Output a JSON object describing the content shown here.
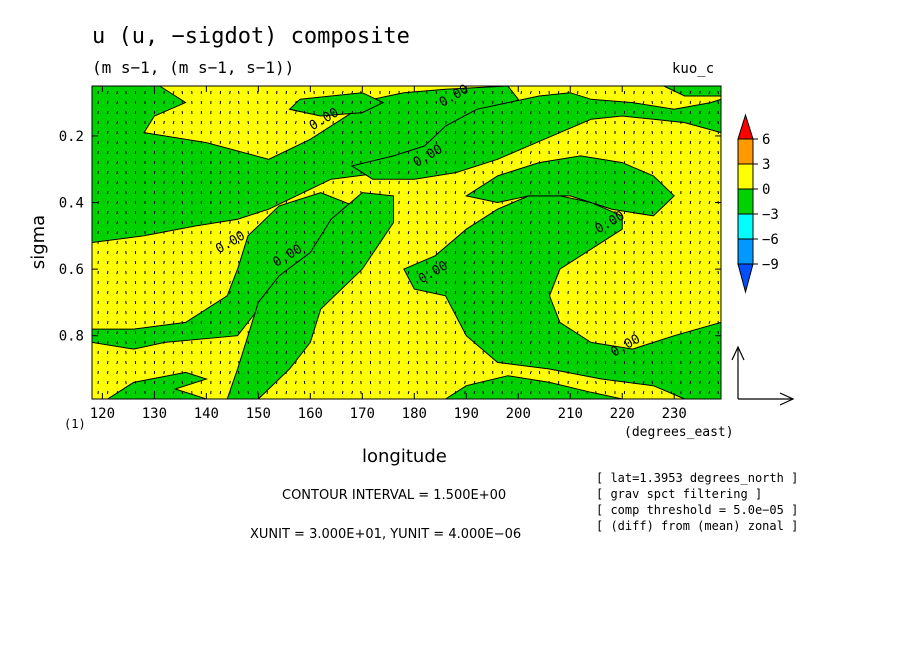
{
  "figure": {
    "title": "u (u, −sigdot) composite",
    "subtitle": "(m s−1, (m s−1, s−1))",
    "dataset": "kuo_c",
    "footnote": "(1)",
    "contour_interval": "CONTOUR INTERVAL = 1.500E+00",
    "units": "XUNIT = 3.000E+01, YUNIT = 4.000E−06",
    "notes": [
      "[ lat=1.3953 degrees_north ]",
      "[ grav spct filtering ]",
      "[ comp threshold = 5.0e−05 ]",
      "[ (diff) from (mean) zonal ]"
    ],
    "colors": {
      "positive": "#ffff00",
      "negative": "#00d200",
      "vector": "#000000"
    }
  },
  "chart_data": {
    "type": "heatmap",
    "title": "u (u, −sigdot) composite",
    "subtitle": "(m s−1, (m s−1, s−1))",
    "xlabel": "longitude",
    "xunits": "(degrees_east)",
    "ylabel": "sigma",
    "xlim": [
      118,
      239
    ],
    "ylim": [
      0.05,
      0.99
    ],
    "y_inverted": true,
    "x_ticks": [
      120,
      130,
      140,
      150,
      160,
      170,
      180,
      190,
      200,
      210,
      220,
      230
    ],
    "y_ticks": [
      0.2,
      0.4,
      0.6,
      0.8
    ],
    "y_tick_labels": [
      "0.2",
      "0.4",
      "0.6",
      "0.8"
    ],
    "contour_label": "0.00",
    "contour_label_positions": [
      [
        163,
        0.16
      ],
      [
        188,
        0.09
      ],
      [
        183,
        0.27
      ],
      [
        145,
        0.53
      ],
      [
        156,
        0.57
      ],
      [
        184,
        0.62
      ],
      [
        218,
        0.47
      ],
      [
        221,
        0.84
      ]
    ],
    "colorbar": {
      "levels": [
        6,
        3,
        0,
        -3,
        -6,
        -9
      ],
      "labels": [
        "6",
        "3",
        "0",
        "−3",
        "−6",
        "−9"
      ],
      "colors": [
        "#ff0000",
        "#ff9900",
        "#ffff00",
        "#00d200",
        "#00ffff",
        "#0099ff",
        "#0050ff"
      ]
    },
    "regions_negative": [
      [
        [
          118,
          0.05
        ],
        [
          131,
          0.05
        ],
        [
          136,
          0.1
        ],
        [
          130,
          0.14
        ],
        [
          128,
          0.19
        ],
        [
          140,
          0.22
        ],
        [
          152,
          0.27
        ],
        [
          160,
          0.21
        ],
        [
          166,
          0.15
        ],
        [
          172,
          0.09
        ],
        [
          178,
          0.07
        ],
        [
          186,
          0.06
        ],
        [
          198,
          0.05
        ],
        [
          200,
          0.09
        ],
        [
          196,
          0.14
        ],
        [
          188,
          0.23
        ],
        [
          180,
          0.27
        ],
        [
          174,
          0.31
        ],
        [
          164,
          0.33
        ],
        [
          160,
          0.36
        ],
        [
          152,
          0.42
        ],
        [
          146,
          0.45
        ],
        [
          138,
          0.47
        ],
        [
          128,
          0.5
        ],
        [
          118,
          0.52
        ]
      ],
      [
        [
          118,
          0.82
        ],
        [
          126,
          0.84
        ],
        [
          132,
          0.82
        ],
        [
          146,
          0.8
        ],
        [
          150,
          0.72
        ],
        [
          156,
          0.65
        ],
        [
          162,
          0.58
        ],
        [
          168,
          0.5
        ],
        [
          170,
          0.42
        ],
        [
          162,
          0.37
        ],
        [
          154,
          0.41
        ],
        [
          148,
          0.5
        ],
        [
          146,
          0.6
        ],
        [
          144,
          0.68
        ],
        [
          136,
          0.76
        ],
        [
          126,
          0.78
        ],
        [
          118,
          0.78
        ]
      ],
      [
        [
          121,
          0.99
        ],
        [
          126,
          0.94
        ],
        [
          136,
          0.91
        ],
        [
          140,
          0.93
        ],
        [
          134,
          0.96
        ],
        [
          140,
          0.99
        ]
      ],
      [
        [
          150,
          0.99
        ],
        [
          156,
          0.9
        ],
        [
          160,
          0.82
        ],
        [
          162,
          0.72
        ],
        [
          170,
          0.6
        ],
        [
          176,
          0.46
        ],
        [
          176,
          0.38
        ],
        [
          170,
          0.37
        ],
        [
          164,
          0.45
        ],
        [
          160,
          0.55
        ],
        [
          154,
          0.62
        ],
        [
          150,
          0.7
        ],
        [
          148,
          0.8
        ],
        [
          146,
          0.9
        ],
        [
          144,
          0.99
        ]
      ],
      [
        [
          158,
          0.09
        ],
        [
          164,
          0.08
        ],
        [
          170,
          0.07
        ],
        [
          174,
          0.1
        ],
        [
          170,
          0.13
        ],
        [
          162,
          0.14
        ],
        [
          156,
          0.12
        ]
      ],
      [
        [
          182,
          0.23
        ],
        [
          186,
          0.17
        ],
        [
          192,
          0.12
        ],
        [
          198,
          0.1
        ],
        [
          204,
          0.08
        ],
        [
          210,
          0.07
        ],
        [
          214,
          0.09
        ],
        [
          222,
          0.1
        ],
        [
          230,
          0.12
        ],
        [
          237,
          0.1
        ],
        [
          239,
          0.09
        ],
        [
          239,
          0.19
        ],
        [
          232,
          0.16
        ],
        [
          226,
          0.15
        ],
        [
          220,
          0.14
        ],
        [
          214,
          0.15
        ],
        [
          208,
          0.19
        ],
        [
          202,
          0.23
        ],
        [
          196,
          0.27
        ],
        [
          188,
          0.31
        ],
        [
          180,
          0.33
        ],
        [
          172,
          0.33
        ],
        [
          168,
          0.29
        ],
        [
          176,
          0.26
        ]
      ],
      [
        [
          178,
          0.6
        ],
        [
          184,
          0.56
        ],
        [
          190,
          0.48
        ],
        [
          196,
          0.42
        ],
        [
          202,
          0.38
        ],
        [
          208,
          0.38
        ],
        [
          214,
          0.4
        ],
        [
          220,
          0.44
        ],
        [
          220,
          0.48
        ],
        [
          214,
          0.54
        ],
        [
          208,
          0.6
        ],
        [
          206,
          0.68
        ],
        [
          208,
          0.76
        ],
        [
          214,
          0.82
        ],
        [
          222,
          0.84
        ],
        [
          230,
          0.8
        ],
        [
          239,
          0.76
        ],
        [
          239,
          0.99
        ],
        [
          232,
          0.99
        ],
        [
          226,
          0.95
        ],
        [
          216,
          0.93
        ],
        [
          206,
          0.9
        ],
        [
          196,
          0.88
        ],
        [
          190,
          0.8
        ],
        [
          186,
          0.68
        ],
        [
          180,
          0.66
        ]
      ],
      [
        [
          196,
          0.32
        ],
        [
          204,
          0.28
        ],
        [
          212,
          0.26
        ],
        [
          220,
          0.28
        ],
        [
          226,
          0.32
        ],
        [
          230,
          0.38
        ],
        [
          226,
          0.44
        ],
        [
          218,
          0.42
        ],
        [
          210,
          0.38
        ],
        [
          202,
          0.38
        ],
        [
          196,
          0.4
        ],
        [
          190,
          0.38
        ]
      ],
      [
        [
          186,
          0.99
        ],
        [
          190,
          0.95
        ],
        [
          198,
          0.92
        ],
        [
          206,
          0.94
        ],
        [
          214,
          0.97
        ],
        [
          220,
          0.99
        ]
      ],
      [
        [
          228,
          0.05
        ],
        [
          239,
          0.05
        ],
        [
          239,
          0.08
        ],
        [
          232,
          0.08
        ]
      ]
    ]
  }
}
